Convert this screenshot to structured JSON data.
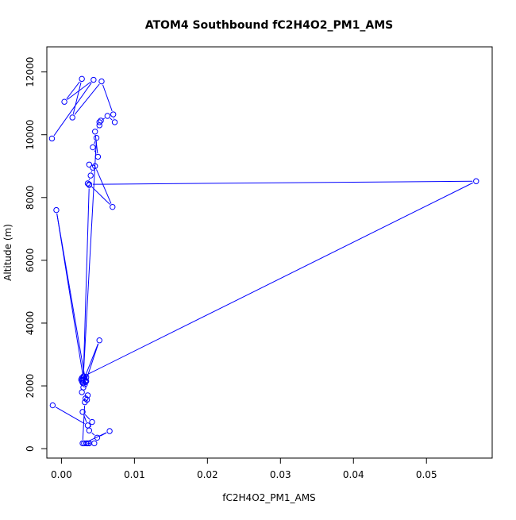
{
  "chart_data": {
    "type": "scatter",
    "title": "ATOM4 Southbound fC2H4O2_PM1_AMS",
    "xlabel": "fC2H4O2_PM1_AMS",
    "ylabel": "Altitude (m)",
    "xlim": [
      -0.002,
      0.059
    ],
    "ylim": [
      -300,
      12800
    ],
    "xticks": [
      0.0,
      0.01,
      0.02,
      0.03,
      0.04,
      0.05
    ],
    "xtick_labels": [
      "0.00",
      "0.01",
      "0.02",
      "0.03",
      "0.04",
      "0.05"
    ],
    "yticks": [
      0,
      2000,
      4000,
      6000,
      8000,
      10000,
      12000
    ],
    "ytick_labels": [
      "0",
      "2000",
      "4000",
      "6000",
      "8000",
      "10000",
      "12000"
    ],
    "grid": false,
    "legend": "none",
    "color": "#0000ff",
    "marker": "open-circle",
    "connected": true,
    "series": [
      {
        "x": [
          -0.0012,
          0.0036,
          0.0029,
          0.0042,
          0.0038,
          0.0049,
          0.0066,
          0.0031,
          0.0045,
          0.0034,
          0.0038,
          0.0036,
          0.0029,
          0.0032,
          0.0035,
          0.0033,
          0.0036,
          0.0028,
          0.003,
          0.0033,
          0.0029,
          0.0034,
          0.0028,
          0.003,
          0.0032,
          0.0052,
          0.0029,
          0.0034,
          0.0027,
          0.0031,
          0.0028,
          0.0033,
          -0.0007,
          0.003,
          0.0038,
          0.0036,
          0.004,
          0.0043,
          0.0038,
          0.0046,
          0.007,
          0.0038,
          0.0568,
          0.003,
          0.0048,
          0.0043,
          0.005,
          0.0046,
          0.0052,
          0.0054,
          0.0052,
          0.0063,
          0.0073,
          0.0071,
          0.0055,
          0.0015,
          0.0028,
          0.0004,
          0.0044,
          -0.0013
        ],
        "y": [
          1380,
          740,
          1170,
          850,
          580,
          350,
          560,
          170,
          170,
          170,
          170,
          170,
          170,
          1480,
          1560,
          1600,
          1700,
          1800,
          1950,
          2120,
          2200,
          2280,
          2150,
          2100,
          2050,
          3450,
          2100,
          2150,
          2200,
          2300,
          2250,
          2150,
          7600,
          2250,
          8400,
          8450,
          8700,
          8950,
          9050,
          9000,
          7700,
          8420,
          8520,
          2300,
          9900,
          9600,
          9300,
          10100,
          10300,
          10450,
          10400,
          10600,
          10400,
          10650,
          11700,
          10550,
          11780,
          11050,
          11750,
          9880
        ]
      }
    ]
  }
}
